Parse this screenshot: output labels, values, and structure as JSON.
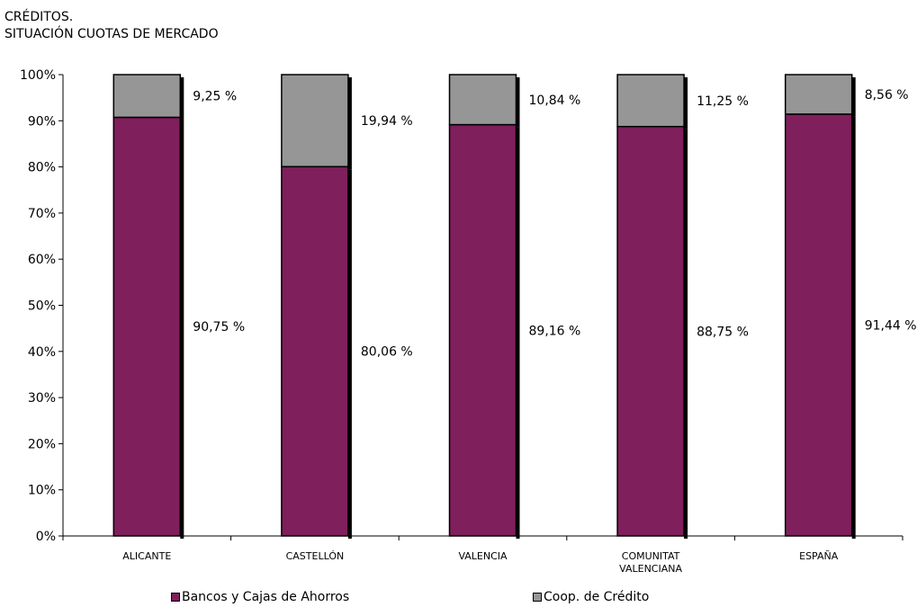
{
  "chart_data": {
    "type": "bar",
    "stacked": true,
    "title_lines": [
      "CRÉDITOS.",
      "SITUACIÓN CUOTAS DE MERCADO"
    ],
    "categories": [
      [
        "ALICANTE"
      ],
      [
        "CASTELLÓN"
      ],
      [
        "VALENCIA"
      ],
      [
        "COMUNITAT",
        "VALENCIANA"
      ],
      [
        "ESPAÑA"
      ]
    ],
    "series": [
      {
        "name": "Bancos y Cajas de Ahorros",
        "color": "#7F1F5C",
        "values": [
          90.75,
          80.06,
          89.16,
          88.75,
          91.44
        ],
        "labels": [
          "90,75 %",
          "80,06 %",
          "89,16 %",
          "88,75 %",
          "91,44 %"
        ]
      },
      {
        "name": "Coop. de Crédito",
        "color": "#969696",
        "values": [
          9.25,
          19.94,
          10.84,
          11.25,
          8.56
        ],
        "labels": [
          "9,25 %",
          "19,94 %",
          "10,84 %",
          "11,25 %",
          "8,56 %"
        ]
      }
    ],
    "y_ticks": [
      "0%",
      "10%",
      "20%",
      "30%",
      "40%",
      "50%",
      "60%",
      "70%",
      "80%",
      "90%",
      "100%"
    ],
    "ylim": [
      0,
      100
    ],
    "grid": false,
    "legend_position": "bottom"
  }
}
